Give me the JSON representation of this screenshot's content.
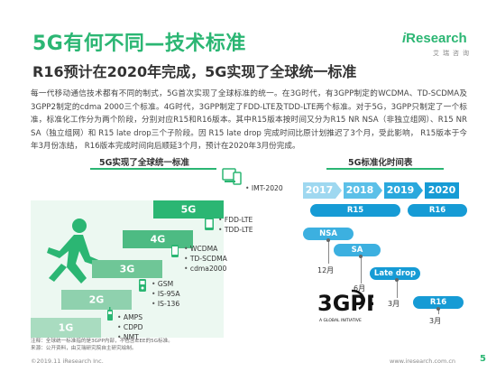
{
  "header": {
    "title": "5G有何不同—技术标准",
    "subtitle": "R16预计在2020年完成，5G实现了全球统一标准",
    "logo_mark": "i",
    "logo_text": "Research",
    "logo_sub": "艾瑞咨询"
  },
  "body_text": "每一代移动通信技术都有不同的制式，5G首次实现了全球标准的统一。在3G时代，有3GPP制定的WCDMA、TD-SCDMA及3GPP2制定的cdma 2000三个标准。4G时代，3GPP制定了FDD-LTE及TDD-LTE两个标准。对于5G，3GPP只制定了一个标准，标准化工作分为两个阶段，分别对应R15和R16版本。其中R15版本按时间又分为R15 NR NSA（非独立组网）、R15 NR SA（独立组网）和 R15 late drop三个子阶段。因 R15 late drop 完成时间比原计划推迟了3个月，受此影响， R15版本于今年3月份冻结， R16版本完成时间向后顺延3个月，预计在2020年3月份完成。",
  "left_chart": {
    "title": "5G实现了全球统一标准",
    "steps": [
      {
        "label": "1G",
        "standards": [
          "AMPS",
          "CDPD",
          "NMT"
        ]
      },
      {
        "label": "2G",
        "standards": [
          "GSM",
          "IS-95A",
          "IS-136"
        ]
      },
      {
        "label": "3G",
        "standards": [
          "WCDMA",
          "TD-SCDMA",
          "cdma2000"
        ]
      },
      {
        "label": "4G",
        "standards": [
          "FDD-LTE",
          "TDD-LTE"
        ]
      },
      {
        "label": "5G",
        "standards": [
          "IMT-2020"
        ]
      }
    ]
  },
  "right_chart": {
    "title": "5G标准化时间表",
    "years": [
      "2017",
      "2018",
      "2019",
      "2020"
    ],
    "bars": [
      {
        "label": "R15"
      },
      {
        "label": "R16"
      },
      {
        "label": "NSA"
      },
      {
        "label": "SA"
      },
      {
        "label": "Late drop"
      },
      {
        "label": "R16"
      }
    ],
    "milestones": [
      "12月",
      "6月",
      "3月",
      "3月"
    ],
    "org_logo": "3GPP",
    "org_tagline": "A GLOBAL INITIATIVE"
  },
  "note": {
    "line1": "注释：全球统一标准指的是3GPP内部，不包含IEEE的5G标准。",
    "line2": "来源：公开资料，由艾瑞研究院自主研究绘制。"
  },
  "footer": {
    "left": "©2019.11 iResearch Inc.",
    "right": "www.iresearch.com.cn",
    "page": "5"
  },
  "colors": {
    "brand_green": "#2bb673",
    "timeline_blue": "#169bd5",
    "timeline_light": "#9fd8f0"
  }
}
